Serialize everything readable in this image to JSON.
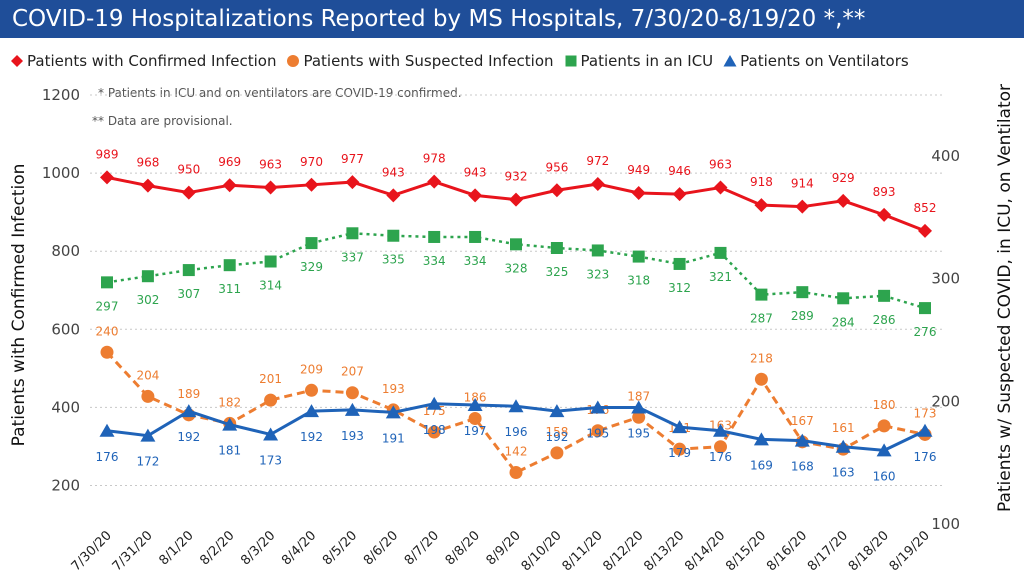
{
  "title": "COVID-19 Hospitalizations Reported by MS Hospitals, 7/30/20-8/19/20 *,**",
  "notes": [
    "* Patients in ICU and on ventilators are COVID-19 confirmed.",
    "** Data are provisional."
  ],
  "chart_data": {
    "type": "line",
    "categories": [
      "7/30/20",
      "7/31/20",
      "8/1/20",
      "8/2/20",
      "8/3/20",
      "8/4/20",
      "8/5/20",
      "8/6/20",
      "8/7/20",
      "8/8/20",
      "8/9/20",
      "8/10/20",
      "8/11/20",
      "8/12/20",
      "8/13/20",
      "8/14/20",
      "8/15/20",
      "8/16/20",
      "8/17/20",
      "8/18/20",
      "8/19/20"
    ],
    "ylabel": "Patients with Confirmed Infection",
    "y2label": "Patients w/ Suspected COVID, in ICU, on Ventilator",
    "ylim": [
      150,
      1200
    ],
    "y2lim": [
      100,
      450
    ],
    "yticks": [
      200,
      400,
      600,
      800,
      1000,
      1200
    ],
    "y2ticks": [
      100,
      200,
      300,
      400
    ],
    "grid": "dotted horizontal",
    "legend": "top",
    "series": [
      {
        "name": "Patients with Confirmed Infection",
        "axis": "left",
        "color": "#e8141c",
        "marker": "diamond",
        "dash": "solid",
        "values": [
          989,
          968,
          950,
          969,
          963,
          970,
          977,
          943,
          978,
          943,
          932,
          956,
          972,
          949,
          946,
          963,
          918,
          914,
          929,
          893,
          852
        ]
      },
      {
        "name": "Patients with Suspected Infection",
        "axis": "right",
        "color": "#ed7d31",
        "marker": "circle",
        "dash": "dashed",
        "values": [
          240,
          204,
          189,
          182,
          201,
          209,
          207,
          193,
          175,
          186,
          142,
          158,
          176,
          187,
          161,
          163,
          218,
          167,
          161,
          180,
          173
        ]
      },
      {
        "name": "Patients in an ICU",
        "axis": "right",
        "color": "#2da44e",
        "marker": "square",
        "dash": "dotted",
        "values": [
          297,
          302,
          307,
          311,
          314,
          329,
          337,
          335,
          334,
          334,
          328,
          325,
          323,
          318,
          312,
          321,
          287,
          289,
          284,
          286,
          276
        ]
      },
      {
        "name": "Patients on Ventilators",
        "axis": "right",
        "color": "#1f63b8",
        "marker": "triangle",
        "dash": "solid",
        "values": [
          176,
          172,
          192,
          181,
          173,
          192,
          193,
          191,
          198,
          197,
          196,
          192,
          195,
          195,
          179,
          176,
          169,
          168,
          163,
          160,
          176
        ]
      }
    ]
  }
}
